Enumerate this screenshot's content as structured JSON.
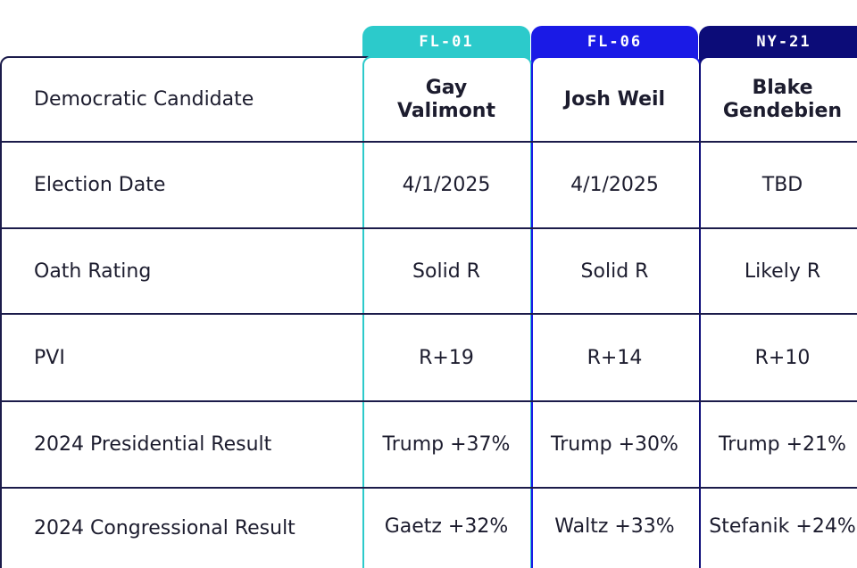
{
  "colors": {
    "fl01": "#2ccacb",
    "fl06": "#1a1ae6",
    "ny21": "#0c0c78",
    "border": "#1b1b4a"
  },
  "row_labels": [
    "Democratic Candidate",
    "Election Date",
    "Oath Rating",
    "PVI",
    "2024 Presidential Result",
    "2024 Congressional Result"
  ],
  "districts": [
    {
      "tab": "FL-01",
      "candidate_line1": "Gay",
      "candidate_line2": "Valimont",
      "election_date": "4/1/2025",
      "oath_rating": "Solid R",
      "pvi": "R+19",
      "presidential": "Trump +37%",
      "congressional": "Gaetz +32%"
    },
    {
      "tab": "FL-06",
      "candidate_line1": "Josh Weil",
      "candidate_line2": "",
      "election_date": "4/1/2025",
      "oath_rating": "Solid R",
      "pvi": "R+14",
      "presidential": "Trump +30%",
      "congressional": "Waltz +33%"
    },
    {
      "tab": "NY-21",
      "candidate_line1": "Blake",
      "candidate_line2": "Gendebien",
      "election_date": "TBD",
      "oath_rating": "Likely R",
      "pvi": "R+10",
      "presidential": "Trump +21%",
      "congressional": "Stefanik +24%"
    }
  ]
}
